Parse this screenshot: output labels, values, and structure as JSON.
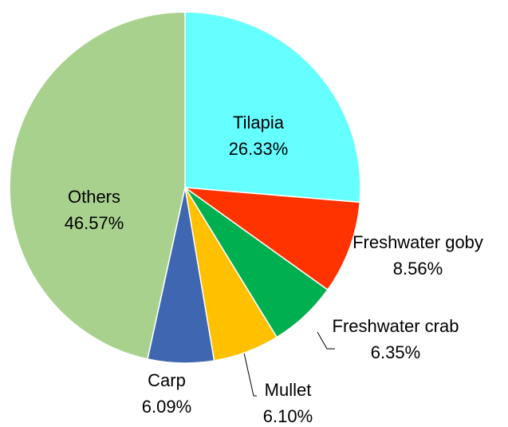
{
  "chart_data": {
    "type": "pie",
    "categories": [
      "Tilapia",
      "Freshwater goby",
      "Freshwater crab",
      "Mullet",
      "Carp",
      "Others"
    ],
    "values": [
      26.33,
      8.56,
      6.35,
      6.1,
      6.09,
      46.57
    ],
    "value_labels": [
      "26.33%",
      "8.56%",
      "6.35%",
      "6.10%",
      "6.09%",
      "46.57%"
    ],
    "colors": [
      "#66FFFF",
      "#FF3300",
      "#00B050",
      "#FFC000",
      "#3F67B1",
      "#A9D18E"
    ]
  }
}
